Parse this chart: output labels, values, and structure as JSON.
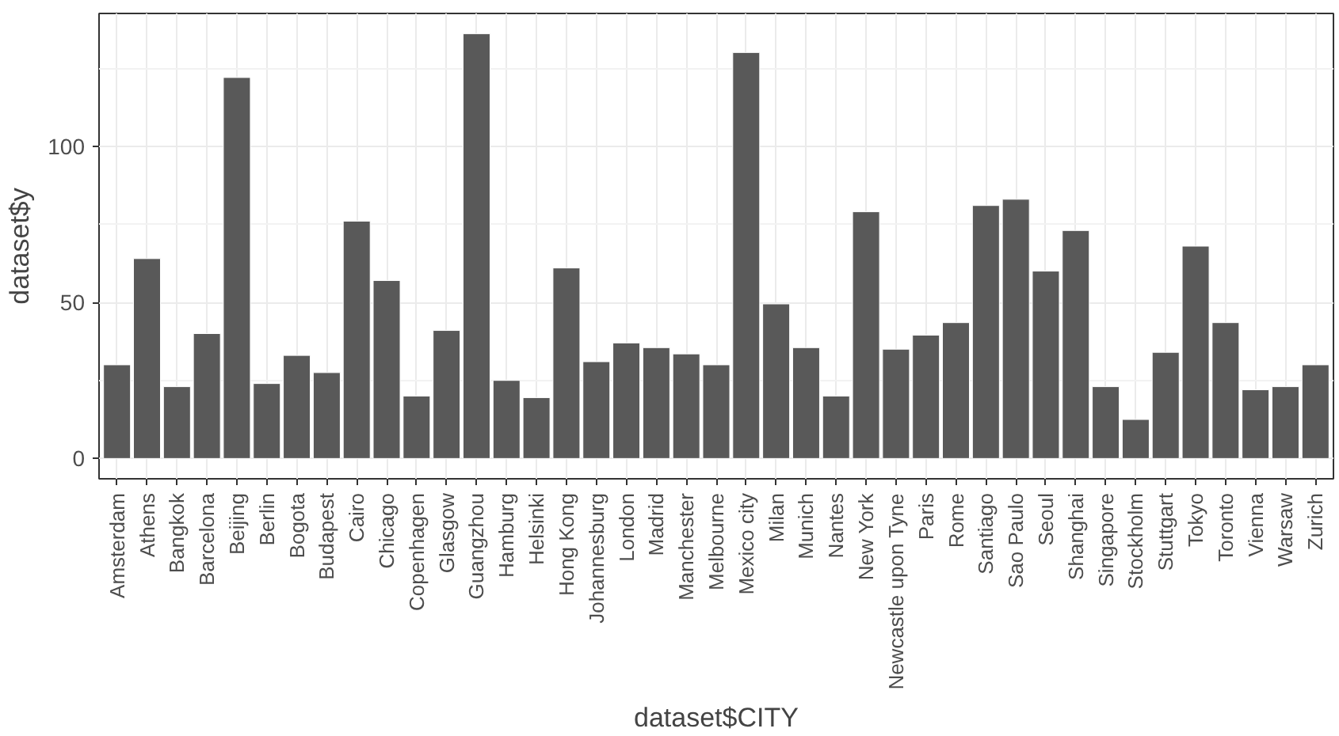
{
  "chart_data": {
    "type": "bar",
    "xlabel": "dataset$CITY",
    "ylabel": "dataset$y",
    "categories": [
      "Amsterdam",
      "Athens",
      "Bangkok",
      "Barcelona",
      "Beijing",
      "Berlin",
      "Bogota",
      "Budapest",
      "Cairo",
      "Chicago",
      "Copenhagen",
      "Glasgow",
      "Guangzhou",
      "Hamburg",
      "Helsinki",
      "Hong Kong",
      "Johannesburg",
      "London",
      "Madrid",
      "Manchester",
      "Melbourne",
      "Mexico city",
      "Milan",
      "Munich",
      "Nantes",
      "New York",
      "Newcastle upon Tyne",
      "Paris",
      "Rome",
      "Santiago",
      "Sao Paulo",
      "Seoul",
      "Shanghai",
      "Singapore",
      "Stockholm",
      "Stuttgart",
      "Tokyo",
      "Toronto",
      "Vienna",
      "Warsaw",
      "Zurich"
    ],
    "values": [
      30,
      64,
      23,
      40,
      122,
      24,
      33,
      27.5,
      76,
      57,
      20,
      41,
      136,
      25,
      19.5,
      61,
      31,
      37,
      35.5,
      33.5,
      30,
      130,
      49.5,
      35.5,
      20,
      79,
      35,
      39.5,
      43.5,
      81,
      83,
      60,
      73,
      23,
      12.5,
      34,
      68,
      43.5,
      22,
      23,
      30
    ],
    "color": "#595959",
    "ylim": [
      -6.5,
      142.5
    ],
    "yticks": [
      0,
      50,
      100
    ],
    "grid": true
  }
}
